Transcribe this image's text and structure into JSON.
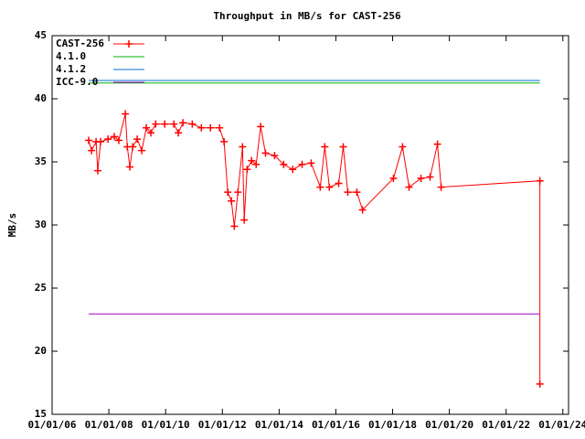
{
  "chart_data": {
    "type": "line",
    "title": "Throughput in MB/s for CAST-256",
    "ylabel": "MB/s",
    "xlim": [
      2006,
      2024.2
    ],
    "ylim": [
      15,
      45
    ],
    "yticks": [
      15,
      20,
      25,
      30,
      35,
      40,
      45
    ],
    "xticks": [
      {
        "value": 2006,
        "label": "01/01/06"
      },
      {
        "value": 2008,
        "label": "01/01/08"
      },
      {
        "value": 2010,
        "label": "01/01/10"
      },
      {
        "value": 2012,
        "label": "01/01/12"
      },
      {
        "value": 2014,
        "label": "01/01/14"
      },
      {
        "value": 2016,
        "label": "01/01/16"
      },
      {
        "value": 2018,
        "label": "01/01/18"
      },
      {
        "value": 2020,
        "label": "01/01/20"
      },
      {
        "value": 2022,
        "label": "01/01/22"
      },
      {
        "value": 2024,
        "label": "01/01/24"
      }
    ],
    "legend": "top-left",
    "series": [
      {
        "name": "CAST-256",
        "color": "#ff0000",
        "markers": true,
        "x": [
          2007.29,
          2007.39,
          2007.55,
          2007.61,
          2007.71,
          2007.97,
          2008.19,
          2008.35,
          2008.58,
          2008.65,
          2008.74,
          2008.84,
          2009.0,
          2009.16,
          2009.32,
          2009.48,
          2009.65,
          2009.97,
          2010.29,
          2010.45,
          2010.61,
          2010.94,
          2011.26,
          2011.58,
          2011.9,
          2012.06,
          2012.19,
          2012.32,
          2012.42,
          2012.55,
          2012.71,
          2012.77,
          2012.87,
          2013.03,
          2013.19,
          2013.35,
          2013.52,
          2013.84,
          2014.16,
          2014.48,
          2014.81,
          2015.13,
          2015.45,
          2015.61,
          2015.77,
          2016.1,
          2016.26,
          2016.42,
          2016.74,
          2016.94,
          2018.03,
          2018.35,
          2018.58,
          2019.0,
          2019.32,
          2019.58,
          2019.71,
          2023.19,
          2023.19
        ],
        "values": [
          36.7,
          35.9,
          36.6,
          34.3,
          36.6,
          36.8,
          37.0,
          36.7,
          38.8,
          36.2,
          34.6,
          36.2,
          36.8,
          35.9,
          37.7,
          37.3,
          38.0,
          38.0,
          38.0,
          37.3,
          38.1,
          38.0,
          37.7,
          37.7,
          37.7,
          36.6,
          32.6,
          31.9,
          29.9,
          32.6,
          36.2,
          30.4,
          34.4,
          35.1,
          34.8,
          37.8,
          35.7,
          35.5,
          34.8,
          34.4,
          34.8,
          34.9,
          33.0,
          36.2,
          33.0,
          33.3,
          36.2,
          32.6,
          32.6,
          31.2,
          33.7,
          36.2,
          33.0,
          33.7,
          33.8,
          36.4,
          33.0,
          33.5,
          17.4
        ]
      },
      {
        "name": "4.1.0",
        "color": "#00b000",
        "x": [
          2007.29,
          2023.19
        ],
        "values": [
          41.25,
          41.25
        ]
      },
      {
        "name": "4.1.2",
        "color": "#0070d0",
        "x": [
          2007.29,
          2023.19
        ],
        "values": [
          41.45,
          41.45
        ]
      },
      {
        "name": "ICC-9.0",
        "color": "#a000c0",
        "x": [
          2007.29,
          2023.19
        ],
        "values": [
          22.95,
          22.95
        ]
      }
    ]
  }
}
